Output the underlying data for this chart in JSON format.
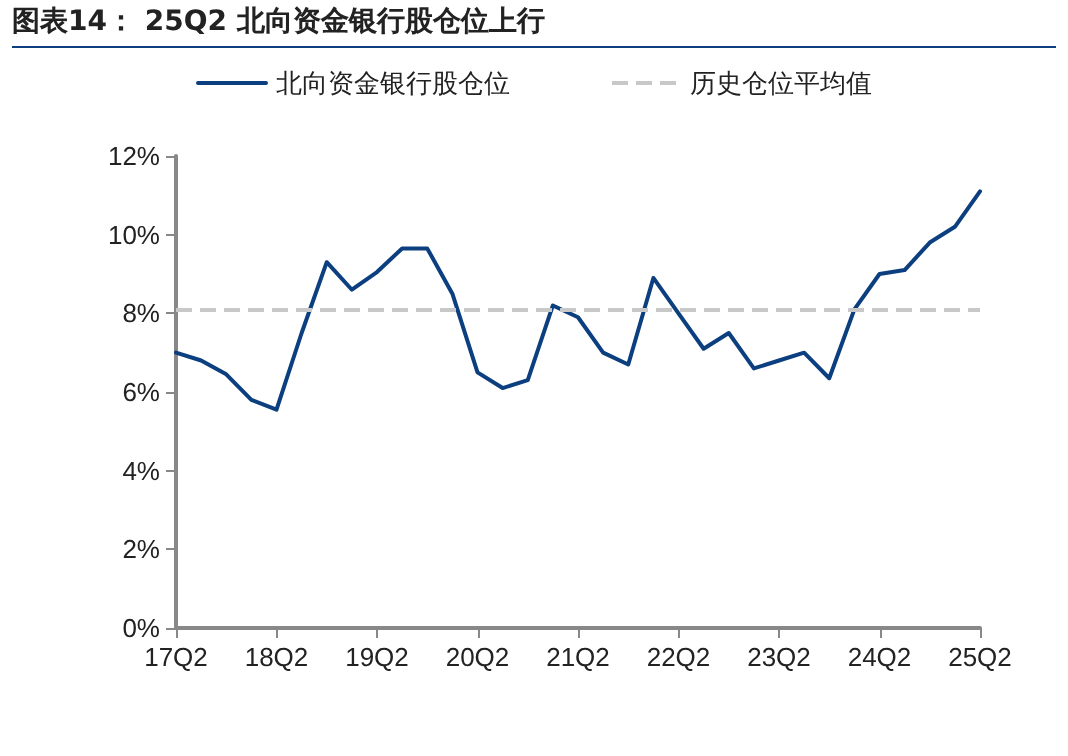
{
  "chart_data": {
    "type": "line",
    "title": "图表14： 25Q2 北向资金银行股仓位上行",
    "categories": [
      "17Q2",
      null,
      null,
      null,
      "18Q2",
      null,
      null,
      null,
      "19Q2",
      null,
      null,
      null,
      "20Q2",
      null,
      null,
      null,
      "21Q2",
      null,
      null,
      null,
      "22Q2",
      null,
      null,
      null,
      "23Q2",
      null,
      null,
      null,
      "24Q2",
      null,
      null,
      null,
      "25Q2"
    ],
    "series": [
      {
        "name": "北向资金银行股仓位",
        "color": "#0c3f7f",
        "values": [
          7.0,
          6.8,
          6.45,
          5.8,
          5.55,
          7.5,
          9.3,
          8.6,
          9.05,
          9.65,
          9.65,
          8.5,
          6.5,
          6.1,
          6.3,
          8.2,
          7.9,
          7.0,
          6.7,
          8.9,
          8.0,
          7.1,
          7.5,
          6.6,
          6.8,
          7.0,
          6.35,
          8.1,
          9.0,
          9.1,
          9.8,
          10.2,
          11.1
        ]
      }
    ],
    "ylim": [
      0,
      12
    ],
    "yticks": [
      {
        "value": 0,
        "label": "0%"
      },
      {
        "value": 2,
        "label": "2%"
      },
      {
        "value": 4,
        "label": "4%"
      },
      {
        "value": 6,
        "label": "6%"
      },
      {
        "value": 8,
        "label": "8%"
      },
      {
        "value": 10,
        "label": "10%"
      },
      {
        "value": 12,
        "label": "12%"
      }
    ],
    "ref_lines": [
      {
        "axis": "y",
        "value": 8.1,
        "label": "历史仓位平均值",
        "color": "#c8c8c8",
        "line_style": "dashed"
      }
    ],
    "grid": false,
    "legend": "top",
    "marker": "none",
    "line_style": "solid"
  }
}
